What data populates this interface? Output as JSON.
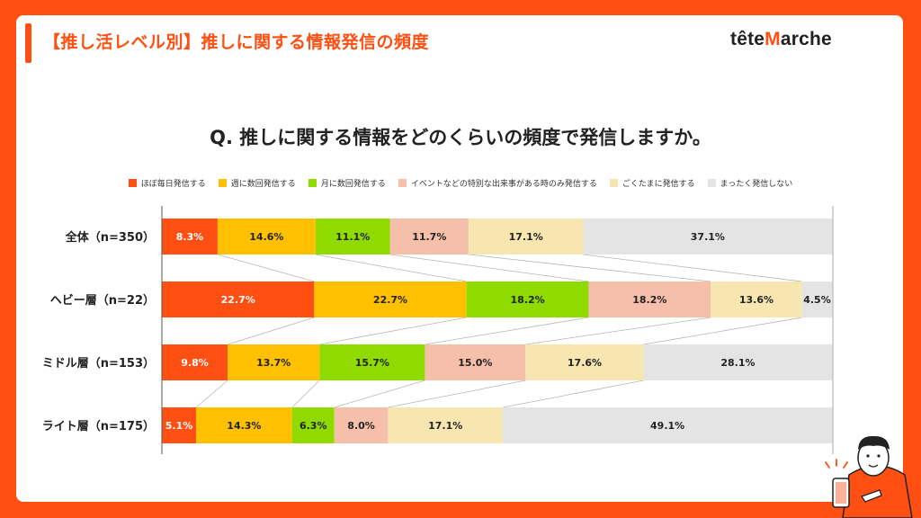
{
  "header": {
    "title": "【推し活レベル別】推しに関する情報発信の頻度",
    "logo_text_a": "tête",
    "logo_text_b": "M",
    "logo_text_c": "arche"
  },
  "chart_data": {
    "type": "bar",
    "orientation": "horizontal-stacked-100",
    "title": "Q. 推しに関する情報をどのくらいの頻度で発信しますか。",
    "xlim": [
      0,
      100
    ],
    "unit": "%",
    "categories": [
      "全体（n=350）",
      "ヘビー層（n=22）",
      "ミドル層（n=153）",
      "ライト層（n=175）"
    ],
    "series": [
      {
        "name": "ほぼ毎日発信する",
        "color": "#ff4f12",
        "label_color": "#ffffff",
        "values": [
          8.3,
          22.7,
          9.8,
          5.1
        ]
      },
      {
        "name": "週に数回発信する",
        "color": "#ffc000",
        "label_color": "#222222",
        "values": [
          14.6,
          22.7,
          13.7,
          14.3
        ]
      },
      {
        "name": "月に数回発信する",
        "color": "#8fdb00",
        "label_color": "#222222",
        "values": [
          11.1,
          18.2,
          15.7,
          6.3
        ]
      },
      {
        "name": "イベントなどの特別な出来事がある時のみ発信する",
        "color": "#f6bfaa",
        "label_color": "#222222",
        "values": [
          11.7,
          18.2,
          15.0,
          8.0
        ]
      },
      {
        "name": "ごくたまに発信する",
        "color": "#f7e6b0",
        "label_color": "#222222",
        "values": [
          17.1,
          13.6,
          17.6,
          17.1
        ]
      },
      {
        "name": "まったく発信しない",
        "color": "#e4e4e4",
        "label_color": "#222222",
        "values": [
          37.1,
          4.5,
          28.1,
          49.1
        ]
      }
    ],
    "data_labels": [
      [
        "8.3%",
        "14.6%",
        "11.1%",
        "11.7%",
        "17.1%",
        "37.1%"
      ],
      [
        "22.7%",
        "22.7%",
        "18.2%",
        "18.2%",
        "13.6%",
        "4.5%"
      ],
      [
        "9.8%",
        "13.7%",
        "15.7%",
        "15.0%",
        "17.6%",
        "28.1%"
      ],
      [
        "5.1%",
        "14.3%",
        "6.3%",
        "8.0%",
        "17.1%",
        "49.1%"
      ]
    ],
    "legend": "top",
    "connector_lines": true
  }
}
